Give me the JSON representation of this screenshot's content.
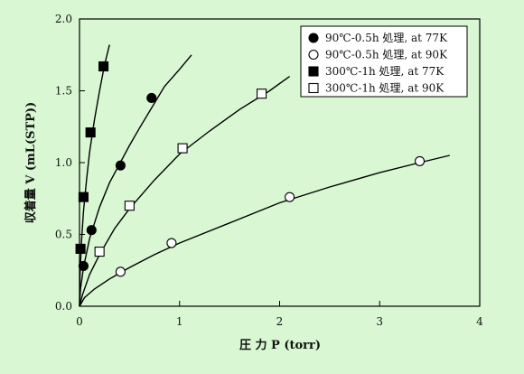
{
  "chart_data": {
    "type": "scatter",
    "xlabel": "圧 力 P (torr)",
    "ylabel": "収着量 V (mL(STP))",
    "xlim": [
      0,
      4
    ],
    "ylim": [
      0,
      2.0
    ],
    "x_ticks": [
      0,
      1,
      2,
      3,
      4
    ],
    "x_tick_labels": [
      "0",
      "1",
      "2",
      "3",
      "4"
    ],
    "y_ticks": [
      0,
      0.5,
      1.0,
      1.5,
      2.0
    ],
    "y_tick_labels": [
      "0.0",
      "0.5",
      "1.0",
      "1.5",
      "2.0"
    ],
    "grid": false,
    "legend_position": "top-right",
    "series": [
      {
        "name": "90℃-0.5h 処理, at 77K",
        "marker": "filled-circle",
        "color": "#000000",
        "points": [
          [
            0.04,
            0.28
          ],
          [
            0.12,
            0.53
          ],
          [
            0.41,
            0.98
          ],
          [
            0.72,
            1.45
          ]
        ],
        "fit_curve": [
          [
            0,
            0
          ],
          [
            0.01,
            0.12
          ],
          [
            0.04,
            0.27
          ],
          [
            0.1,
            0.47
          ],
          [
            0.2,
            0.69
          ],
          [
            0.3,
            0.86
          ],
          [
            0.4,
            0.99
          ],
          [
            0.5,
            1.12
          ],
          [
            0.6,
            1.24
          ],
          [
            0.72,
            1.38
          ],
          [
            0.85,
            1.53
          ],
          [
            1.0,
            1.65
          ],
          [
            1.12,
            1.75
          ]
        ]
      },
      {
        "name": "90℃-0.5h 処理, at 90K",
        "marker": "open-circle",
        "color": "#000000",
        "points": [
          [
            0.41,
            0.24
          ],
          [
            0.92,
            0.44
          ],
          [
            2.1,
            0.76
          ],
          [
            3.4,
            1.01
          ]
        ],
        "fit_curve": [
          [
            0,
            0
          ],
          [
            0.05,
            0.06
          ],
          [
            0.15,
            0.12
          ],
          [
            0.3,
            0.19
          ],
          [
            0.5,
            0.27
          ],
          [
            0.75,
            0.36
          ],
          [
            1.0,
            0.44
          ],
          [
            1.5,
            0.58
          ],
          [
            2.0,
            0.72
          ],
          [
            2.5,
            0.83
          ],
          [
            3.0,
            0.93
          ],
          [
            3.4,
            1.0
          ],
          [
            3.7,
            1.05
          ]
        ]
      },
      {
        "name": "300℃-1h 処理, at 77K",
        "marker": "filled-square",
        "color": "#000000",
        "points": [
          [
            0.01,
            0.4
          ],
          [
            0.04,
            0.76
          ],
          [
            0.11,
            1.21
          ],
          [
            0.24,
            1.67
          ]
        ],
        "fit_curve": [
          [
            0,
            0
          ],
          [
            0.005,
            0.22
          ],
          [
            0.02,
            0.45
          ],
          [
            0.04,
            0.66
          ],
          [
            0.07,
            0.88
          ],
          [
            0.1,
            1.07
          ],
          [
            0.15,
            1.3
          ],
          [
            0.2,
            1.5
          ],
          [
            0.25,
            1.68
          ],
          [
            0.3,
            1.82
          ]
        ]
      },
      {
        "name": "300℃-1h 処理, at 90K",
        "marker": "open-square",
        "color": "#000000",
        "points": [
          [
            0.2,
            0.38
          ],
          [
            0.5,
            0.7
          ],
          [
            1.03,
            1.1
          ],
          [
            1.82,
            1.48
          ]
        ],
        "fit_curve": [
          [
            0,
            0
          ],
          [
            0.03,
            0.08
          ],
          [
            0.1,
            0.22
          ],
          [
            0.2,
            0.36
          ],
          [
            0.35,
            0.54
          ],
          [
            0.5,
            0.68
          ],
          [
            0.75,
            0.88
          ],
          [
            1.0,
            1.06
          ],
          [
            1.3,
            1.22
          ],
          [
            1.6,
            1.37
          ],
          [
            1.9,
            1.5
          ],
          [
            2.1,
            1.6
          ]
        ]
      }
    ]
  }
}
